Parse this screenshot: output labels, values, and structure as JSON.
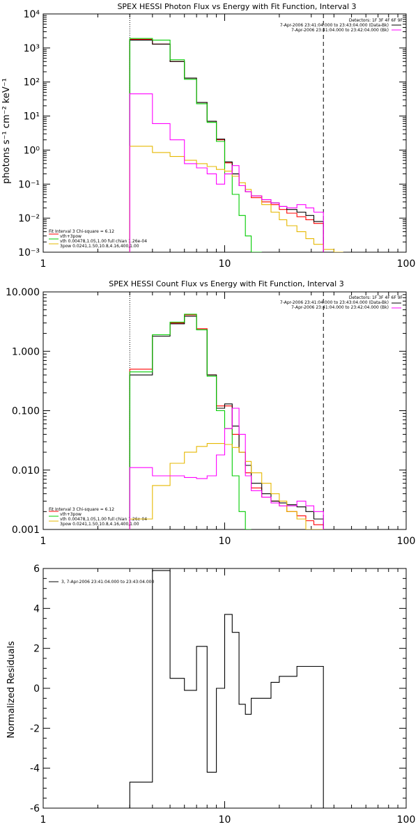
{
  "chart_data": [
    {
      "type": "line",
      "title": "SPEX HESSI Photon Flux vs Energy with Fit Function, Interval 3",
      "xlabel": "",
      "ylabel": "photons s⁻¹ cm⁻² keV⁻¹",
      "xscale": "log",
      "yscale": "log",
      "xlim": [
        1,
        100
      ],
      "ylim": [
        0.001,
        10000
      ],
      "x_ticks": [
        1,
        10,
        100
      ],
      "x_tick_labels": [
        "1",
        "10",
        "100"
      ],
      "y_ticks": [
        0.001,
        0.01,
        0.1,
        1,
        10,
        100,
        1000,
        10000
      ],
      "y_tick_labels": [
        "10⁻³",
        "10⁻²",
        "10⁻¹",
        "10⁰",
        "10¹",
        "10²",
        "10³",
        "10⁴"
      ],
      "detector_note": "Detectors: 1F 3F 4F 6F 9F",
      "time_labels": [
        {
          "text": "7-Apr-2006 23:41:04.000 to 23:43:04.000 (Data-Bk)",
          "color": "#000000"
        },
        {
          "text": "7-Apr-2006 23:41:04.000 to 23:42:04.000 (Bk)",
          "color": "#ff00ff"
        }
      ],
      "fit_legend": {
        "title": "Fit Interval 3   Chi-square = 6.12",
        "entries": [
          {
            "text": "vth+3pow",
            "color": "#ff0000"
          },
          {
            "text": "vth 0.00478,1.05,1.00  full chian 1.26e-04",
            "color": "#00cc00"
          },
          {
            "text": "3pow 0.0241,1.50,10.8,4.16,400,1.00",
            "color": "#e6b800"
          }
        ]
      },
      "vlines": [
        {
          "x": 3,
          "style": "dotted"
        },
        {
          "x": 35,
          "style": "dashed"
        }
      ],
      "x_edges": [
        3,
        4,
        5,
        6,
        7,
        8,
        9,
        10,
        11,
        12,
        13,
        14,
        16,
        18,
        20,
        22,
        25,
        28,
        31,
        35,
        40,
        45
      ],
      "series": [
        {
          "name": "vth+3pow",
          "color": "#ff0000",
          "values": [
            1800,
            1300,
            400,
            130,
            25,
            7,
            2,
            0.42,
            0.2,
            0.09,
            0.06,
            0.04,
            0.03,
            0.025,
            0.018,
            0.014,
            0.011,
            0.009,
            0.007
          ]
        },
        {
          "color": "#000000",
          "values": [
            1700,
            1300,
            400,
            130,
            25,
            7,
            2.1,
            0.45,
            0.2,
            0.09,
            0.06,
            0.045,
            0.035,
            0.028,
            0.022,
            0.018,
            0.015,
            0.012,
            0.008
          ]
        },
        {
          "color": "#00cc00",
          "values": [
            1900,
            1700,
            450,
            120,
            23,
            6.5,
            1.8,
            0.2,
            0.05,
            0.012,
            0.003,
            0.0008
          ]
        },
        {
          "color": "#e6b800",
          "values": [
            1.3,
            0.85,
            0.65,
            0.5,
            0.4,
            0.33,
            0.27,
            0.24,
            0.17,
            0.11,
            0.07,
            0.045,
            0.025,
            0.015,
            0.009,
            0.006,
            0.004,
            0.0025,
            0.0017,
            0.0012,
            0.0009
          ]
        },
        {
          "color": "#ff00ff",
          "values": [
            45,
            6,
            2,
            0.4,
            0.3,
            0.2,
            0.1,
            0.2,
            0.35,
            0.09,
            0.06,
            0.045,
            0.035,
            0.028,
            0.022,
            0.02,
            0.025,
            0.02,
            0.015
          ]
        }
      ]
    },
    {
      "type": "line",
      "title": "SPEX HESSI Count Flux vs Energy with Fit Function, Interval 3",
      "xlabel": "",
      "ylabel": "",
      "xscale": "log",
      "yscale": "log",
      "xlim": [
        1,
        100
      ],
      "ylim": [
        0.001,
        10
      ],
      "x_ticks": [
        1,
        10,
        100
      ],
      "x_tick_labels": [
        "1",
        "10",
        "100"
      ],
      "y_ticks": [
        0.001,
        0.01,
        0.1,
        1,
        10
      ],
      "y_tick_labels": [
        "0.001",
        "0.010",
        "0.100",
        "1.000",
        "10.000"
      ],
      "detector_note": "Detectors: 1F 3F 4F 6F 9F",
      "time_labels": [
        {
          "text": "7-Apr-2006 23:41:04.000 to 23:43:04.000 (Data-Bk)",
          "color": "#000000"
        },
        {
          "text": "7-Apr-2006 23:41:04.000 to 23:42:04.000 (Bk)",
          "color": "#ff00ff"
        }
      ],
      "fit_legend": {
        "title": "Fit Interval 3   Chi-square = 6.12",
        "entries": [
          {
            "text": "vth+3pow",
            "color": "#ff0000"
          },
          {
            "text": "vth 0.00478,1.05,1.00  full chian 1.26e-04",
            "color": "#00cc00"
          },
          {
            "text": "3pow 0.0241,1.50,10.8,4.16,400,1.00",
            "color": "#e6b800"
          }
        ]
      },
      "vlines": [
        {
          "x": 3,
          "style": "dotted"
        },
        {
          "x": 35,
          "style": "dashed"
        }
      ],
      "x_edges": [
        3,
        4,
        5,
        6,
        7,
        8,
        9,
        10,
        11,
        12,
        13,
        14,
        16,
        18,
        20,
        22,
        25,
        28,
        31,
        35,
        40,
        45
      ],
      "series": [
        {
          "name": "vth+3pow",
          "color": "#ff0000",
          "values": [
            0.5,
            1.9,
            3,
            4.1,
            2.4,
            0.4,
            0.12,
            0.12,
            0.04,
            0.02,
            0.009,
            0.005,
            0.0035,
            0.003,
            0.0025,
            0.002,
            0.0017,
            0.0014,
            0.0012
          ]
        },
        {
          "color": "#000000",
          "values": [
            0.4,
            1.8,
            2.9,
            3.9,
            2.3,
            0.4,
            0.11,
            0.13,
            0.055,
            0.02,
            0.012,
            0.006,
            0.004,
            0.003,
            0.0028,
            0.0026,
            0.0024,
            0.002,
            0.0015
          ]
        },
        {
          "color": "#00cc00",
          "values": [
            0.45,
            1.9,
            3.1,
            4.2,
            2.3,
            0.38,
            0.1,
            0.05,
            0.008,
            0.002,
            0.0008
          ]
        },
        {
          "color": "#e6b800",
          "values": [
            0.0015,
            0.0055,
            0.013,
            0.02,
            0.025,
            0.028,
            0.028,
            0.027,
            0.024,
            0.02,
            0.014,
            0.009,
            0.006,
            0.004,
            0.003,
            0.002,
            0.0015,
            0.001,
            0.0008
          ]
        },
        {
          "color": "#ff00ff",
          "values": [
            0.011,
            0.008,
            0.008,
            0.0075,
            0.0072,
            0.008,
            0.018,
            0.05,
            0.11,
            0.04,
            0.008,
            0.0045,
            0.0035,
            0.0028,
            0.0025,
            0.0025,
            0.003,
            0.0025,
            0.002
          ]
        }
      ]
    },
    {
      "type": "line",
      "title": "",
      "xlabel": "",
      "ylabel": "Normalized Residuals",
      "xscale": "log",
      "yscale": "linear",
      "xlim": [
        1,
        100
      ],
      "ylim": [
        -6,
        6
      ],
      "x_ticks": [
        1,
        10,
        100
      ],
      "x_tick_labels": [
        "1",
        "10",
        "100"
      ],
      "y_ticks": [
        -6,
        -4,
        -2,
        0,
        2,
        4,
        6
      ],
      "y_tick_labels": [
        "-6",
        "-4",
        "-2",
        "0",
        "2",
        "4",
        "6"
      ],
      "legend_label": "3,  7-Apr-2006 23:41:04.000 to 23:43:04.000",
      "x_edges": [
        3,
        4,
        5,
        6,
        7,
        8,
        9,
        10,
        11,
        12,
        13,
        14,
        16,
        18,
        20,
        22,
        25,
        28,
        31,
        35
      ],
      "series": [
        {
          "color": "#000000",
          "values": [
            -4.7,
            5.9,
            0.5,
            -0.1,
            2.1,
            -4.2,
            0.0,
            3.7,
            2.8,
            -0.8,
            -1.3,
            -0.5,
            -0.5,
            0.3,
            0.6,
            0.6,
            1.1,
            1.1,
            1.1
          ]
        }
      ]
    }
  ]
}
